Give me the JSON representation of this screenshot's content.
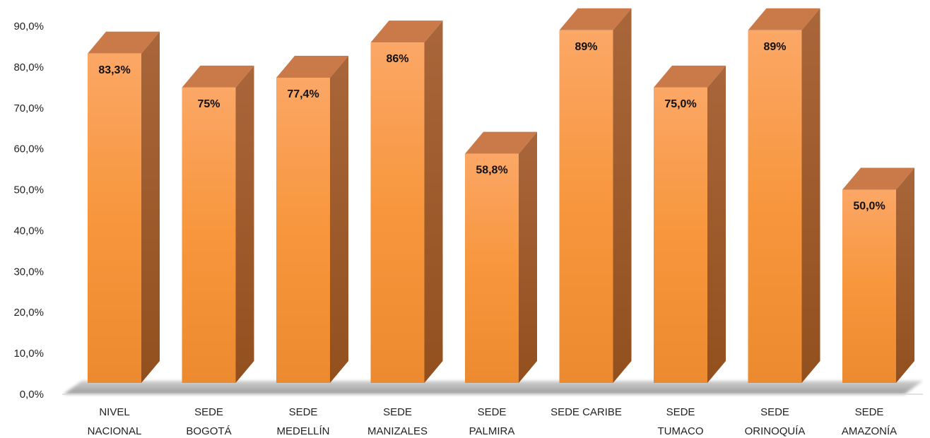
{
  "chart_data": {
    "type": "bar",
    "style": "3d-column",
    "categories": [
      [
        "NIVEL",
        "NACIONAL"
      ],
      [
        "SEDE",
        "BOGOTÁ"
      ],
      [
        "SEDE",
        "MEDELLÍN"
      ],
      [
        "SEDE",
        "MANIZALES"
      ],
      [
        "SEDE",
        "PALMIRA"
      ],
      [
        "SEDE CARIBE"
      ],
      [
        "SEDE",
        "TUMACO"
      ],
      [
        "SEDE",
        "ORINOQUÍA"
      ],
      [
        "SEDE",
        "AMAZONÍA"
      ]
    ],
    "values": [
      83.3,
      75,
      77.4,
      86,
      58.8,
      89,
      75.0,
      89,
      50.0
    ],
    "data_labels": [
      "83,3%",
      "75%",
      "77,4%",
      "86%",
      "58,8%",
      "89%",
      "75,0%",
      "89%",
      "50,0%"
    ],
    "y_ticks": [
      "0,0%",
      "10,0%",
      "20,0%",
      "30,0%",
      "40,0%",
      "50,0%",
      "60,0%",
      "70,0%",
      "80,0%",
      "90,0%"
    ],
    "ylim": [
      0,
      90
    ],
    "grid": false,
    "legend": "none",
    "colors": {
      "bar_light": "#f9a55e",
      "bar_mid": "#f7963d",
      "bar_dark": "#e9852a",
      "bar_side": "#a0582a",
      "bar_top": "#c97a48",
      "floor_shadow": "#9a9a9a"
    }
  }
}
